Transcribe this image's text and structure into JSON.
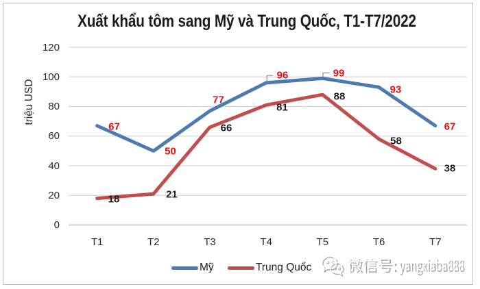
{
  "chart_data": {
    "type": "line",
    "title": "Xuất khẩu tôm sang Mỹ và Trung Quốc, T1-T7/2022",
    "categories": [
      "T1",
      "T2",
      "T3",
      "T4",
      "T5",
      "T6",
      "T7"
    ],
    "series": [
      {
        "name": "Mỹ",
        "values": [
          67,
          50,
          77,
          96,
          99,
          93,
          67
        ],
        "color": "#4d7ab0",
        "label_color": "#e01111"
      },
      {
        "name": "Trung Quốc",
        "values": [
          18,
          21,
          66,
          81,
          88,
          58,
          38
        ],
        "color": "#bf4f4c",
        "label_color": "#1c1c1c"
      }
    ],
    "ylabel": "triệu USD",
    "xlabel": "",
    "yticks": [
      0,
      20,
      40,
      60,
      80,
      100,
      120
    ],
    "ylim": [
      0,
      120
    ],
    "grid": true,
    "legend_position": "bottom",
    "gridline_color": "#d7d7d7",
    "axis_line_color": "#c3c3c3"
  },
  "watermark": {
    "text": "微信号: yangxiaba888",
    "icon": "wechat-icon"
  }
}
